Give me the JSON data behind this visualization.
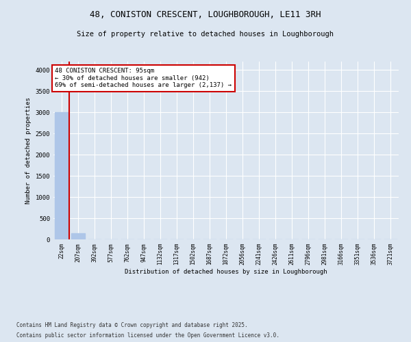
{
  "title1": "48, CONISTON CRESCENT, LOUGHBOROUGH, LE11 3RH",
  "title2": "Size of property relative to detached houses in Loughborough",
  "xlabel": "Distribution of detached houses by size in Loughborough",
  "ylabel": "Number of detached properties",
  "categories": [
    "22sqm",
    "207sqm",
    "392sqm",
    "577sqm",
    "762sqm",
    "947sqm",
    "1132sqm",
    "1317sqm",
    "1502sqm",
    "1687sqm",
    "1872sqm",
    "2056sqm",
    "2241sqm",
    "2426sqm",
    "2611sqm",
    "2796sqm",
    "2981sqm",
    "3166sqm",
    "3351sqm",
    "3536sqm",
    "3721sqm"
  ],
  "values": [
    3000,
    150,
    0,
    0,
    0,
    0,
    0,
    0,
    0,
    0,
    0,
    0,
    0,
    0,
    0,
    0,
    0,
    0,
    0,
    0,
    0
  ],
  "bar_color": "#aec6e8",
  "property_line_x": 0.45,
  "property_line_color": "#cc0000",
  "annotation_text": "48 CONISTON CRESCENT: 95sqm\n← 30% of detached houses are smaller (942)\n69% of semi-detached houses are larger (2,137) →",
  "annotation_box_color": "#cc0000",
  "ylim": [
    0,
    4200
  ],
  "yticks": [
    0,
    500,
    1000,
    1500,
    2000,
    2500,
    3000,
    3500,
    4000
  ],
  "background_color": "#dce6f1",
  "plot_bg_color": "#dce6f1",
  "footer1": "Contains HM Land Registry data © Crown copyright and database right 2025.",
  "footer2": "Contains public sector information licensed under the Open Government Licence v3.0.",
  "grid_color": "#ffffff",
  "font_family": "monospace"
}
